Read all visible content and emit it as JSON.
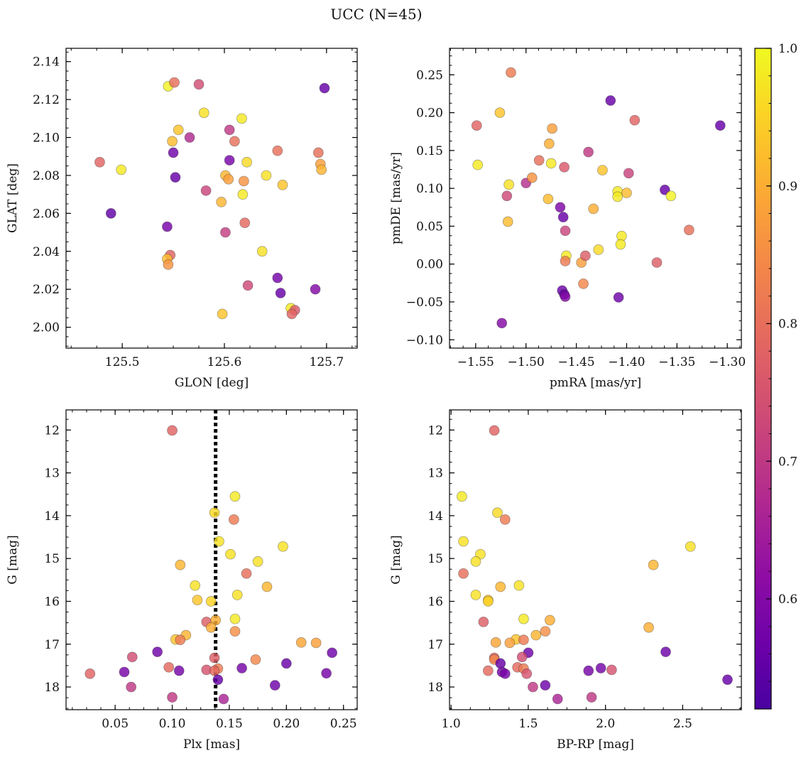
{
  "figure": {
    "title": "UCC (N=45)"
  },
  "colorbar": {
    "range": [
      0.52,
      1.0
    ],
    "ticks": [
      0.6,
      0.7,
      0.8,
      0.9,
      1.0
    ],
    "tick_labels": [
      "0.6",
      "0.7",
      "0.8",
      "0.9",
      "1.0"
    ],
    "colormap": "plasma"
  },
  "chart_data": [
    {
      "type": "scatter",
      "xlabel": "GLON [deg]",
      "ylabel": "GLAT [deg]",
      "xlim": [
        125.445,
        125.73
      ],
      "ylim": [
        1.989,
        2.147
      ],
      "xticks": [
        125.5,
        125.6,
        125.7
      ],
      "xtick_labels": [
        "125.5",
        "125.6",
        "125.7"
      ],
      "yticks": [
        2.0,
        2.02,
        2.04,
        2.06,
        2.08,
        2.1,
        2.12,
        2.14
      ],
      "ytick_labels": [
        "2.00",
        "2.02",
        "2.04",
        "2.06",
        "2.08",
        "2.10",
        "2.12",
        "2.14"
      ],
      "points": [
        {
          "x": 125.478,
          "y": 2.087,
          "c": 0.78
        },
        {
          "x": 125.499,
          "y": 2.083,
          "c": 0.98
        },
        {
          "x": 125.489,
          "y": 2.06,
          "c": 0.55
        },
        {
          "x": 125.545,
          "y": 2.127,
          "c": 0.99
        },
        {
          "x": 125.551,
          "y": 2.129,
          "c": 0.8
        },
        {
          "x": 125.575,
          "y": 2.128,
          "c": 0.74
        },
        {
          "x": 125.58,
          "y": 2.113,
          "c": 0.97
        },
        {
          "x": 125.555,
          "y": 2.104,
          "c": 0.93
        },
        {
          "x": 125.566,
          "y": 2.1,
          "c": 0.67
        },
        {
          "x": 125.549,
          "y": 2.098,
          "c": 0.92
        },
        {
          "x": 125.55,
          "y": 2.092,
          "c": 0.57
        },
        {
          "x": 125.552,
          "y": 2.079,
          "c": 0.56
        },
        {
          "x": 125.582,
          "y": 2.072,
          "c": 0.72
        },
        {
          "x": 125.544,
          "y": 2.053,
          "c": 0.58
        },
        {
          "x": 125.547,
          "y": 2.038,
          "c": 0.78
        },
        {
          "x": 125.544,
          "y": 2.036,
          "c": 0.92
        },
        {
          "x": 125.545,
          "y": 2.033,
          "c": 0.86
        },
        {
          "x": 125.605,
          "y": 2.104,
          "c": 0.7
        },
        {
          "x": 125.61,
          "y": 2.098,
          "c": 0.8
        },
        {
          "x": 125.617,
          "y": 2.11,
          "c": 0.98
        },
        {
          "x": 125.605,
          "y": 2.088,
          "c": 0.58
        },
        {
          "x": 125.622,
          "y": 2.087,
          "c": 0.96
        },
        {
          "x": 125.601,
          "y": 2.08,
          "c": 0.91
        },
        {
          "x": 125.604,
          "y": 2.078,
          "c": 0.88
        },
        {
          "x": 125.619,
          "y": 2.077,
          "c": 0.86
        },
        {
          "x": 125.618,
          "y": 2.07,
          "c": 0.98
        },
        {
          "x": 125.597,
          "y": 2.066,
          "c": 0.91
        },
        {
          "x": 125.641,
          "y": 2.08,
          "c": 0.97
        },
        {
          "x": 125.657,
          "y": 2.075,
          "c": 0.93
        },
        {
          "x": 125.62,
          "y": 2.055,
          "c": 0.79
        },
        {
          "x": 125.601,
          "y": 2.05,
          "c": 0.71
        },
        {
          "x": 125.637,
          "y": 2.04,
          "c": 0.97
        },
        {
          "x": 125.652,
          "y": 2.093,
          "c": 0.8
        },
        {
          "x": 125.692,
          "y": 2.092,
          "c": 0.8
        },
        {
          "x": 125.694,
          "y": 2.086,
          "c": 0.88
        },
        {
          "x": 125.695,
          "y": 2.083,
          "c": 0.91
        },
        {
          "x": 125.698,
          "y": 2.126,
          "c": 0.56
        },
        {
          "x": 125.652,
          "y": 2.026,
          "c": 0.58
        },
        {
          "x": 125.623,
          "y": 2.022,
          "c": 0.73
        },
        {
          "x": 125.655,
          "y": 2.018,
          "c": 0.56
        },
        {
          "x": 125.689,
          "y": 2.02,
          "c": 0.6
        },
        {
          "x": 125.665,
          "y": 2.01,
          "c": 0.98
        },
        {
          "x": 125.669,
          "y": 2.009,
          "c": 0.76
        },
        {
          "x": 125.666,
          "y": 2.007,
          "c": 0.78
        },
        {
          "x": 125.598,
          "y": 2.007,
          "c": 0.93
        }
      ]
    },
    {
      "type": "scatter",
      "xlabel": "pmRA [mas/yr]",
      "ylabel": "pmDE [mas/yr]",
      "xlim": [
        -1.576,
        -1.286
      ],
      "ylim": [
        -0.111,
        0.285
      ],
      "xticks": [
        -1.55,
        -1.5,
        -1.45,
        -1.4,
        -1.35,
        -1.3
      ],
      "xtick_labels": [
        "−1.55",
        "−1.50",
        "−1.45",
        "−1.40",
        "−1.35",
        "−1.30"
      ],
      "yticks": [
        -0.1,
        -0.05,
        0.0,
        0.05,
        0.1,
        0.15,
        0.2,
        0.25
      ],
      "ytick_labels": [
        "−0.10",
        "−0.05",
        "0.00",
        "0.05",
        "0.10",
        "0.15",
        "0.20",
        "0.25"
      ],
      "points": [
        {
          "x": -1.549,
          "y": 0.183,
          "c": 0.78
        },
        {
          "x": -1.548,
          "y": 0.131,
          "c": 0.98
        },
        {
          "x": -1.526,
          "y": 0.2,
          "c": 0.93
        },
        {
          "x": -1.515,
          "y": 0.253,
          "c": 0.82
        },
        {
          "x": -1.519,
          "y": 0.09,
          "c": 0.73
        },
        {
          "x": -1.517,
          "y": 0.105,
          "c": 0.97
        },
        {
          "x": -1.518,
          "y": 0.056,
          "c": 0.92
        },
        {
          "x": -1.524,
          "y": -0.078,
          "c": 0.6
        },
        {
          "x": -1.5,
          "y": 0.107,
          "c": 0.68
        },
        {
          "x": -1.494,
          "y": 0.114,
          "c": 0.86
        },
        {
          "x": -1.487,
          "y": 0.137,
          "c": 0.8
        },
        {
          "x": -1.478,
          "y": 0.086,
          "c": 0.92
        },
        {
          "x": -1.477,
          "y": 0.159,
          "c": 0.9
        },
        {
          "x": -1.474,
          "y": 0.179,
          "c": 0.88
        },
        {
          "x": -1.475,
          "y": 0.133,
          "c": 0.98
        },
        {
          "x": -1.466,
          "y": 0.075,
          "c": 0.59
        },
        {
          "x": -1.463,
          "y": 0.062,
          "c": 0.56
        },
        {
          "x": -1.462,
          "y": 0.128,
          "c": 0.76
        },
        {
          "x": -1.461,
          "y": 0.044,
          "c": 0.72
        },
        {
          "x": -1.46,
          "y": 0.011,
          "c": 0.98
        },
        {
          "x": -1.461,
          "y": 0.004,
          "c": 0.82
        },
        {
          "x": -1.464,
          "y": -0.035,
          "c": 0.57
        },
        {
          "x": -1.462,
          "y": -0.04,
          "c": 0.56
        },
        {
          "x": -1.461,
          "y": -0.043,
          "c": 0.6
        },
        {
          "x": -1.445,
          "y": 0.002,
          "c": 0.88
        },
        {
          "x": -1.441,
          "y": 0.011,
          "c": 0.77
        },
        {
          "x": -1.443,
          "y": -0.026,
          "c": 0.84
        },
        {
          "x": -1.438,
          "y": 0.148,
          "c": 0.7
        },
        {
          "x": -1.433,
          "y": 0.073,
          "c": 0.9
        },
        {
          "x": -1.428,
          "y": 0.019,
          "c": 0.96
        },
        {
          "x": -1.424,
          "y": 0.124,
          "c": 0.93
        },
        {
          "x": -1.416,
          "y": 0.216,
          "c": 0.56
        },
        {
          "x": -1.409,
          "y": 0.096,
          "c": 0.98
        },
        {
          "x": -1.409,
          "y": 0.089,
          "c": 0.98
        },
        {
          "x": -1.4,
          "y": 0.094,
          "c": 0.92
        },
        {
          "x": -1.405,
          "y": 0.037,
          "c": 0.98
        },
        {
          "x": -1.406,
          "y": 0.026,
          "c": 0.98
        },
        {
          "x": -1.408,
          "y": -0.044,
          "c": 0.57
        },
        {
          "x": -1.398,
          "y": 0.12,
          "c": 0.72
        },
        {
          "x": -1.392,
          "y": 0.19,
          "c": 0.78
        },
        {
          "x": -1.37,
          "y": 0.002,
          "c": 0.77
        },
        {
          "x": -1.362,
          "y": 0.098,
          "c": 0.56
        },
        {
          "x": -1.356,
          "y": 0.09,
          "c": 0.99
        },
        {
          "x": -1.338,
          "y": 0.045,
          "c": 0.8
        },
        {
          "x": -1.307,
          "y": 0.183,
          "c": 0.56
        }
      ]
    },
    {
      "type": "scatter",
      "xlabel": "Plx [mas]",
      "ylabel": "G [mag]",
      "xlim": [
        0.007,
        0.262
      ],
      "ylim": [
        18.53,
        11.53
      ],
      "inverted_y": true,
      "vline": {
        "x": 0.138,
        "style": "dotted"
      },
      "xticks": [
        0.05,
        0.1,
        0.15,
        0.2,
        0.25
      ],
      "xtick_labels": [
        "0.05",
        "0.10",
        "0.15",
        "0.20",
        "0.25"
      ],
      "yticks": [
        12,
        13,
        14,
        15,
        16,
        17,
        18
      ],
      "ytick_labels": [
        "12",
        "13",
        "14",
        "15",
        "16",
        "17",
        "18"
      ],
      "points": [
        {
          "x": 0.1,
          "y": 12.01,
          "c": 0.78
        },
        {
          "x": 0.137,
          "y": 13.93,
          "c": 0.96
        },
        {
          "x": 0.155,
          "y": 13.55,
          "c": 0.98
        },
        {
          "x": 0.154,
          "y": 14.09,
          "c": 0.82
        },
        {
          "x": 0.141,
          "y": 14.6,
          "c": 0.97
        },
        {
          "x": 0.151,
          "y": 14.9,
          "c": 0.97
        },
        {
          "x": 0.197,
          "y": 14.72,
          "c": 0.97
        },
        {
          "x": 0.175,
          "y": 15.07,
          "c": 0.97
        },
        {
          "x": 0.107,
          "y": 15.15,
          "c": 0.91
        },
        {
          "x": 0.165,
          "y": 15.35,
          "c": 0.8
        },
        {
          "x": 0.12,
          "y": 15.63,
          "c": 0.97
        },
        {
          "x": 0.183,
          "y": 15.66,
          "c": 0.91
        },
        {
          "x": 0.157,
          "y": 15.85,
          "c": 0.97
        },
        {
          "x": 0.122,
          "y": 15.97,
          "c": 0.93
        },
        {
          "x": 0.134,
          "y": 16.0,
          "c": 0.95
        },
        {
          "x": 0.155,
          "y": 16.41,
          "c": 0.98
        },
        {
          "x": 0.13,
          "y": 16.48,
          "c": 0.77
        },
        {
          "x": 0.138,
          "y": 16.44,
          "c": 0.9
        },
        {
          "x": 0.134,
          "y": 16.61,
          "c": 0.9
        },
        {
          "x": 0.155,
          "y": 16.7,
          "c": 0.85
        },
        {
          "x": 0.112,
          "y": 16.79,
          "c": 0.91
        },
        {
          "x": 0.103,
          "y": 16.89,
          "c": 0.93
        },
        {
          "x": 0.107,
          "y": 16.9,
          "c": 0.82
        },
        {
          "x": 0.213,
          "y": 16.96,
          "c": 0.89
        },
        {
          "x": 0.226,
          "y": 16.97,
          "c": 0.88
        },
        {
          "x": 0.087,
          "y": 17.18,
          "c": 0.57
        },
        {
          "x": 0.065,
          "y": 17.3,
          "c": 0.74
        },
        {
          "x": 0.137,
          "y": 17.32,
          "c": 0.77
        },
        {
          "x": 0.173,
          "y": 17.36,
          "c": 0.84
        },
        {
          "x": 0.24,
          "y": 17.2,
          "c": 0.57
        },
        {
          "x": 0.2,
          "y": 17.45,
          "c": 0.56
        },
        {
          "x": 0.097,
          "y": 17.54,
          "c": 0.79
        },
        {
          "x": 0.13,
          "y": 17.6,
          "c": 0.75
        },
        {
          "x": 0.14,
          "y": 17.57,
          "c": 0.82
        },
        {
          "x": 0.137,
          "y": 17.62,
          "c": 0.79
        },
        {
          "x": 0.161,
          "y": 17.56,
          "c": 0.58
        },
        {
          "x": 0.106,
          "y": 17.62,
          "c": 0.58
        },
        {
          "x": 0.058,
          "y": 17.65,
          "c": 0.58
        },
        {
          "x": 0.028,
          "y": 17.69,
          "c": 0.78
        },
        {
          "x": 0.235,
          "y": 17.68,
          "c": 0.58
        },
        {
          "x": 0.14,
          "y": 17.83,
          "c": 0.56
        },
        {
          "x": 0.19,
          "y": 17.96,
          "c": 0.57
        },
        {
          "x": 0.064,
          "y": 18.0,
          "c": 0.7
        },
        {
          "x": 0.1,
          "y": 18.24,
          "c": 0.7
        },
        {
          "x": 0.145,
          "y": 18.28,
          "c": 0.66
        }
      ]
    },
    {
      "type": "scatter",
      "xlabel": "BP-RP [mag]",
      "ylabel": "G [mag]",
      "xlim": [
        0.99,
        2.88
      ],
      "ylim": [
        18.53,
        11.53
      ],
      "inverted_y": true,
      "xticks": [
        1.0,
        1.5,
        2.0,
        2.5
      ],
      "xtick_labels": [
        "1.0",
        "1.5",
        "2.0",
        "2.5"
      ],
      "yticks": [
        12,
        13,
        14,
        15,
        16,
        17,
        18
      ],
      "ytick_labels": [
        "12",
        "13",
        "14",
        "15",
        "16",
        "17",
        "18"
      ],
      "points": [
        {
          "x": 1.28,
          "y": 12.01,
          "c": 0.78
        },
        {
          "x": 1.07,
          "y": 13.55,
          "c": 0.98
        },
        {
          "x": 1.3,
          "y": 13.93,
          "c": 0.96
        },
        {
          "x": 1.35,
          "y": 14.09,
          "c": 0.82
        },
        {
          "x": 1.08,
          "y": 14.6,
          "c": 0.97
        },
        {
          "x": 1.19,
          "y": 14.9,
          "c": 0.97
        },
        {
          "x": 2.55,
          "y": 14.72,
          "c": 0.97
        },
        {
          "x": 1.16,
          "y": 15.07,
          "c": 0.97
        },
        {
          "x": 2.31,
          "y": 15.15,
          "c": 0.91
        },
        {
          "x": 1.08,
          "y": 15.35,
          "c": 0.8
        },
        {
          "x": 1.32,
          "y": 15.66,
          "c": 0.91
        },
        {
          "x": 1.44,
          "y": 15.63,
          "c": 0.97
        },
        {
          "x": 1.16,
          "y": 15.85,
          "c": 0.97
        },
        {
          "x": 1.24,
          "y": 15.97,
          "c": 0.93
        },
        {
          "x": 1.24,
          "y": 16.0,
          "c": 0.95
        },
        {
          "x": 1.21,
          "y": 16.48,
          "c": 0.77
        },
        {
          "x": 1.47,
          "y": 16.41,
          "c": 0.98
        },
        {
          "x": 1.64,
          "y": 16.44,
          "c": 0.9
        },
        {
          "x": 1.61,
          "y": 16.7,
          "c": 0.85
        },
        {
          "x": 1.55,
          "y": 16.79,
          "c": 0.91
        },
        {
          "x": 2.28,
          "y": 16.61,
          "c": 0.9
        },
        {
          "x": 1.42,
          "y": 16.89,
          "c": 0.93
        },
        {
          "x": 1.47,
          "y": 16.9,
          "c": 0.82
        },
        {
          "x": 1.29,
          "y": 16.96,
          "c": 0.89
        },
        {
          "x": 1.38,
          "y": 16.97,
          "c": 0.88
        },
        {
          "x": 1.5,
          "y": 17.2,
          "c": 0.57
        },
        {
          "x": 2.39,
          "y": 17.18,
          "c": 0.57
        },
        {
          "x": 1.46,
          "y": 17.3,
          "c": 0.74
        },
        {
          "x": 1.28,
          "y": 17.32,
          "c": 0.77
        },
        {
          "x": 1.28,
          "y": 17.36,
          "c": 0.84
        },
        {
          "x": 1.32,
          "y": 17.45,
          "c": 0.56
        },
        {
          "x": 1.43,
          "y": 17.54,
          "c": 0.79
        },
        {
          "x": 1.47,
          "y": 17.57,
          "c": 0.82
        },
        {
          "x": 1.24,
          "y": 17.62,
          "c": 0.79
        },
        {
          "x": 1.33,
          "y": 17.65,
          "c": 0.58
        },
        {
          "x": 1.35,
          "y": 17.69,
          "c": 0.58
        },
        {
          "x": 1.49,
          "y": 17.69,
          "c": 0.75
        },
        {
          "x": 1.89,
          "y": 17.62,
          "c": 0.58
        },
        {
          "x": 1.97,
          "y": 17.56,
          "c": 0.58
        },
        {
          "x": 2.04,
          "y": 17.6,
          "c": 0.75
        },
        {
          "x": 2.79,
          "y": 17.83,
          "c": 0.56
        },
        {
          "x": 1.53,
          "y": 18.0,
          "c": 0.7
        },
        {
          "x": 1.61,
          "y": 17.96,
          "c": 0.57
        },
        {
          "x": 1.69,
          "y": 18.28,
          "c": 0.66
        },
        {
          "x": 1.91,
          "y": 18.24,
          "c": 0.7
        }
      ]
    }
  ]
}
